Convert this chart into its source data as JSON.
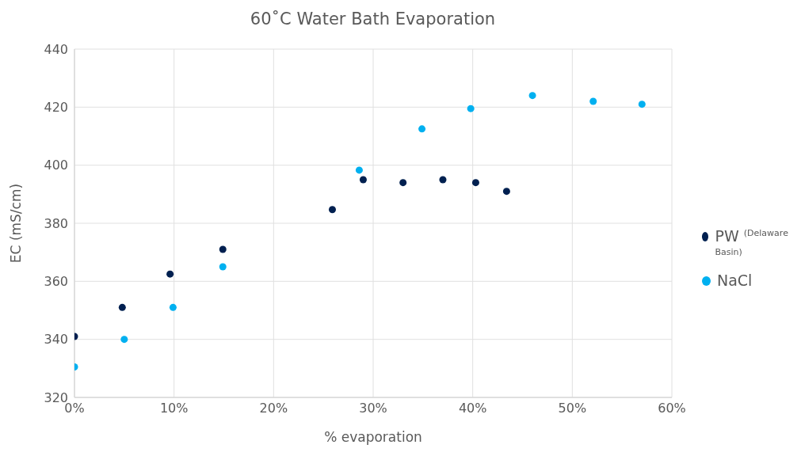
{
  "chart_data": {
    "type": "scatter",
    "title": "60˚C Water Bath Evaporation",
    "xlabel": "% evaporation",
    "ylabel": "EC (mS/cm)",
    "xlim": [
      0,
      60
    ],
    "xticks": [
      {
        "value": 0,
        "label": "0%"
      },
      {
        "value": 10,
        "label": "10%"
      },
      {
        "value": 20,
        "label": "20%"
      },
      {
        "value": 30,
        "label": "30%"
      },
      {
        "value": 40,
        "label": "40%"
      },
      {
        "value": 50,
        "label": "50%"
      },
      {
        "value": 60,
        "label": "60%"
      }
    ],
    "ylim": [
      320,
      440
    ],
    "yticks": [
      320,
      340,
      360,
      380,
      400,
      420,
      440
    ],
    "grid": true,
    "legend": "right",
    "marker": "circle",
    "series": [
      {
        "name": "PW $^{(Delaware Basin)}$",
        "color": "#002050",
        "x": [
          0,
          4.8,
          9.6,
          14.9,
          25.9,
          29,
          33,
          37,
          40.3,
          43.4
        ],
        "values": [
          341,
          351,
          362.5,
          371,
          384.7,
          395,
          394,
          395,
          394,
          391
        ]
      },
      {
        "name": "NaCl",
        "color": "#00b0f0",
        "x": [
          0,
          5,
          9.9,
          14.9,
          28.6,
          34.9,
          39.8,
          46,
          52.1,
          57
        ],
        "values": [
          330.5,
          340,
          351,
          365,
          398.3,
          412.5,
          419.5,
          424,
          422,
          421
        ]
      }
    ]
  }
}
